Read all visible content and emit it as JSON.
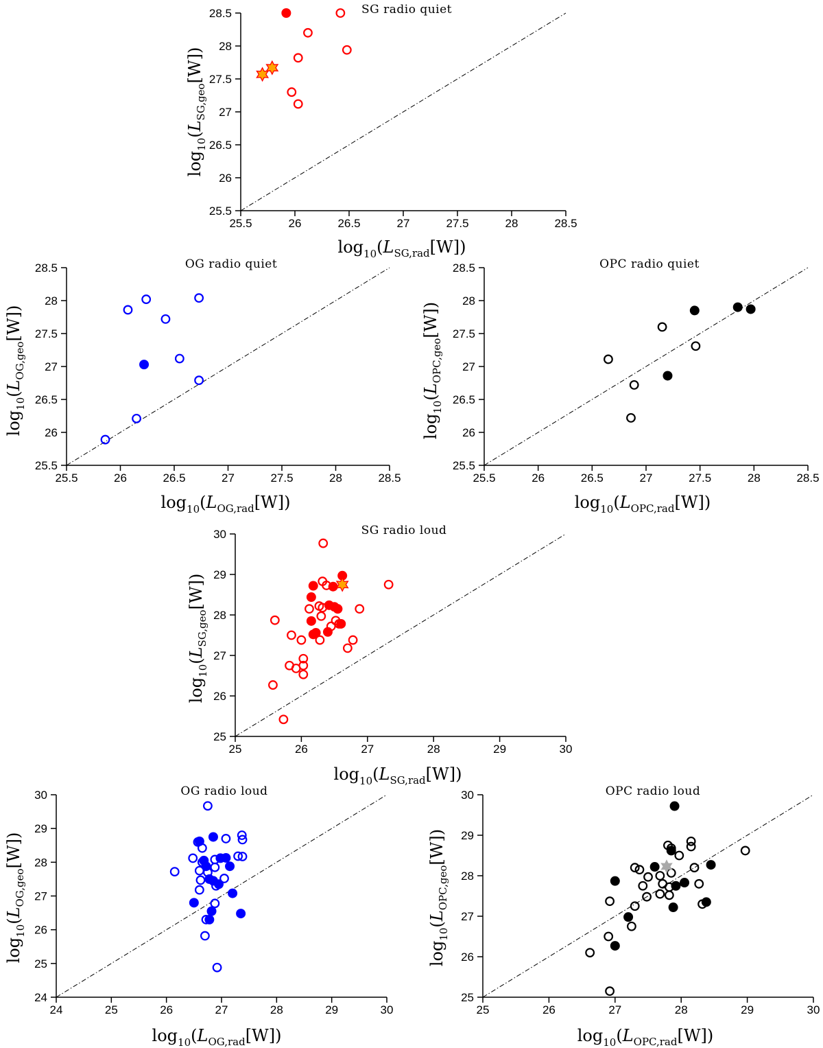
{
  "colors": {
    "sg": "#ff0000",
    "og": "#0000ff",
    "opc": "#000000",
    "star_fill": "#ffa500",
    "star_edge": "#ff0000",
    "grey_star": "#a9a9a9"
  },
  "chart_data": [
    {
      "type": "scatter",
      "title": "SG radio quiet",
      "xlabel": {
        "pre": "log",
        "base": "10",
        "open": "(",
        "var": "L",
        "sub": "SG,rad",
        "unit": "[W])"
      },
      "ylabel": {
        "pre": "log",
        "base": "10",
        "open": "(",
        "var": "L",
        "sub": "SG,geo",
        "unit": "[W])"
      },
      "xlim": [
        25.5,
        28.5
      ],
      "ylim": [
        25.5,
        28.5
      ],
      "xticks": [
        "25.5",
        "26",
        "26.5",
        "27",
        "27.5",
        "28",
        "28.5"
      ],
      "yticks": [
        "25.5",
        "26",
        "26.5",
        "27",
        "27.5",
        "28",
        "28.5"
      ],
      "color_key": "sg",
      "diagonal": true,
      "series": [
        {
          "marker": "filled",
          "points": [
            [
              25.92,
              28.5
            ]
          ]
        },
        {
          "marker": "open",
          "points": [
            [
              26.42,
              28.5
            ],
            [
              26.12,
              28.2
            ],
            [
              26.48,
              27.94
            ],
            [
              26.03,
              27.82
            ],
            [
              25.97,
              27.3
            ],
            [
              26.03,
              27.12
            ]
          ]
        },
        {
          "marker": "star",
          "points": [
            [
              25.7,
              27.57
            ],
            [
              25.79,
              27.67
            ]
          ]
        }
      ]
    },
    {
      "type": "scatter",
      "title": "OG radio quiet",
      "xlabel": {
        "pre": "log",
        "base": "10",
        "open": "(",
        "var": "L",
        "sub": "OG,rad",
        "unit": "[W])"
      },
      "ylabel": {
        "pre": "log",
        "base": "10",
        "open": "(",
        "var": "L",
        "sub": "OG,geo",
        "unit": "[W])"
      },
      "xlim": [
        25.5,
        28.5
      ],
      "ylim": [
        25.5,
        28.5
      ],
      "xticks": [
        "25.5",
        "26",
        "26.5",
        "27",
        "27.5",
        "28",
        "28.5"
      ],
      "yticks": [
        "25.5",
        "26",
        "26.5",
        "27",
        "27.5",
        "28",
        "28.5"
      ],
      "color_key": "og",
      "diagonal": true,
      "series": [
        {
          "marker": "filled",
          "points": [
            [
              26.22,
              27.03
            ]
          ]
        },
        {
          "marker": "open",
          "points": [
            [
              26.07,
              27.86
            ],
            [
              26.24,
              28.02
            ],
            [
              26.73,
              28.04
            ],
            [
              26.42,
              27.72
            ],
            [
              26.55,
              27.12
            ],
            [
              26.73,
              26.79
            ],
            [
              26.15,
              26.21
            ],
            [
              25.86,
              25.89
            ]
          ]
        }
      ]
    },
    {
      "type": "scatter",
      "title": "OPC radio quiet",
      "xlabel": {
        "pre": "log",
        "base": "10",
        "open": "(",
        "var": "L",
        "sub": "OPC,rad",
        "unit": "[W])"
      },
      "ylabel": {
        "pre": "log",
        "base": "10",
        "open": "(",
        "var": "L",
        "sub": "OPC,geo",
        "unit": "[W])"
      },
      "xlim": [
        25.5,
        28.5
      ],
      "ylim": [
        25.5,
        28.5
      ],
      "xticks": [
        "25.5",
        "26",
        "26.5",
        "27",
        "27.5",
        "28",
        "28.5"
      ],
      "yticks": [
        "25.5",
        "26",
        "26.5",
        "27",
        "27.5",
        "28",
        "28.5"
      ],
      "color_key": "opc",
      "diagonal": true,
      "series": [
        {
          "marker": "filled",
          "points": [
            [
              27.45,
              27.85
            ],
            [
              27.85,
              27.9
            ],
            [
              27.97,
              27.87
            ],
            [
              27.2,
              26.86
            ]
          ]
        },
        {
          "marker": "open",
          "points": [
            [
              27.15,
              27.6
            ],
            [
              27.46,
              27.31
            ],
            [
              26.65,
              27.11
            ],
            [
              26.89,
              26.72
            ],
            [
              26.86,
              26.22
            ]
          ]
        }
      ]
    },
    {
      "type": "scatter",
      "title": "SG radio loud",
      "xlabel": {
        "pre": "log",
        "base": "10",
        "open": "(",
        "var": "L",
        "sub": "SG,rad",
        "unit": "[W])"
      },
      "ylabel": {
        "pre": "log",
        "base": "10",
        "open": "(",
        "var": "L",
        "sub": "SG,geo",
        "unit": "[W])"
      },
      "xlim": [
        25,
        30
      ],
      "ylim": [
        25,
        30
      ],
      "xticks": [
        "25",
        "26",
        "27",
        "28",
        "29",
        "30"
      ],
      "yticks": [
        "25",
        "26",
        "27",
        "28",
        "29",
        "30"
      ],
      "color_key": "sg",
      "diagonal": true,
      "series": [
        {
          "marker": "filled",
          "points": [
            [
              26.62,
              28.97
            ],
            [
              26.18,
              28.72
            ],
            [
              26.48,
              28.7
            ],
            [
              26.15,
              28.44
            ],
            [
              26.42,
              28.24
            ],
            [
              26.5,
              28.2
            ],
            [
              26.55,
              28.15
            ],
            [
              26.15,
              27.85
            ],
            [
              26.6,
              27.78
            ],
            [
              26.22,
              27.56
            ],
            [
              26.4,
              27.58
            ],
            [
              26.18,
              27.52
            ]
          ]
        },
        {
          "marker": "open",
          "points": [
            [
              26.33,
              29.77
            ],
            [
              26.32,
              28.83
            ],
            [
              26.38,
              28.73
            ],
            [
              27.32,
              28.75
            ],
            [
              26.27,
              28.22
            ],
            [
              26.12,
              28.15
            ],
            [
              26.32,
              28.18
            ],
            [
              26.88,
              28.15
            ],
            [
              26.3,
              27.97
            ],
            [
              26.52,
              27.86
            ],
            [
              25.6,
              27.87
            ],
            [
              26.45,
              27.72
            ],
            [
              26.57,
              27.78
            ],
            [
              25.85,
              27.5
            ],
            [
              26.0,
              27.38
            ],
            [
              26.28,
              27.38
            ],
            [
              26.78,
              27.38
            ],
            [
              26.7,
              27.18
            ],
            [
              26.03,
              26.92
            ],
            [
              25.82,
              26.75
            ],
            [
              26.03,
              26.75
            ],
            [
              25.92,
              26.68
            ],
            [
              26.03,
              26.53
            ],
            [
              25.57,
              26.27
            ],
            [
              25.73,
              25.42
            ]
          ]
        },
        {
          "marker": "star",
          "points": [
            [
              26.62,
              28.75
            ]
          ]
        }
      ]
    },
    {
      "type": "scatter",
      "title": "OG radio loud",
      "xlabel": {
        "pre": "log",
        "base": "10",
        "open": "(",
        "var": "L",
        "sub": "OG,rad",
        "unit": "[W])"
      },
      "ylabel": {
        "pre": "log",
        "base": "10",
        "open": "(",
        "var": "L",
        "sub": "OG,geo",
        "unit": "[W])"
      },
      "xlim": [
        24,
        30
      ],
      "ylim": [
        24,
        30
      ],
      "xticks": [
        "24",
        "25",
        "26",
        "27",
        "28",
        "29",
        "30"
      ],
      "yticks": [
        "24",
        "25",
        "26",
        "27",
        "28",
        "29",
        "30"
      ],
      "color_key": "og",
      "diagonal": true,
      "series": [
        {
          "marker": "filled",
          "points": [
            [
              26.85,
              28.75
            ],
            [
              26.6,
              28.62
            ],
            [
              26.68,
              28.05
            ],
            [
              26.98,
              28.12
            ],
            [
              27.08,
              28.13
            ],
            [
              27.15,
              27.88
            ],
            [
              26.72,
              27.88
            ],
            [
              26.78,
              27.5
            ],
            [
              26.85,
              27.45
            ],
            [
              26.95,
              27.35
            ],
            [
              27.2,
              27.08
            ],
            [
              26.5,
              26.8
            ],
            [
              26.82,
              26.55
            ],
            [
              26.78,
              26.3
            ],
            [
              27.35,
              26.48
            ]
          ]
        },
        {
          "marker": "open",
          "points": [
            [
              26.75,
              29.67
            ],
            [
              27.37,
              28.8
            ],
            [
              27.08,
              28.7
            ],
            [
              27.38,
              28.67
            ],
            [
              26.57,
              28.6
            ],
            [
              26.65,
              28.42
            ],
            [
              26.48,
              28.12
            ],
            [
              26.88,
              28.08
            ],
            [
              27.3,
              28.18
            ],
            [
              27.38,
              28.17
            ],
            [
              26.65,
              28.0
            ],
            [
              26.6,
              27.75
            ],
            [
              26.88,
              27.85
            ],
            [
              26.75,
              27.7
            ],
            [
              26.15,
              27.72
            ],
            [
              26.62,
              27.47
            ],
            [
              27.05,
              27.52
            ],
            [
              26.9,
              27.3
            ],
            [
              26.6,
              27.18
            ],
            [
              26.88,
              26.78
            ],
            [
              26.72,
              26.3
            ],
            [
              26.7,
              25.82
            ],
            [
              26.92,
              24.88
            ]
          ]
        }
      ]
    },
    {
      "type": "scatter",
      "title": "OPC radio loud",
      "xlabel": {
        "pre": "log",
        "base": "10",
        "open": "(",
        "var": "L",
        "sub": "OPC,rad",
        "unit": "[W])"
      },
      "ylabel": {
        "pre": "log",
        "base": "10",
        "open": "(",
        "var": "L",
        "sub": "OPC,geo",
        "unit": "[W])"
      },
      "xlim": [
        25,
        30
      ],
      "ylim": [
        25,
        30
      ],
      "xticks": [
        "25",
        "26",
        "27",
        "28",
        "29",
        "30"
      ],
      "yticks": [
        "25",
        "26",
        "27",
        "28",
        "29",
        "30"
      ],
      "color_key": "opc",
      "diagonal": true,
      "series": [
        {
          "marker": "filled",
          "points": [
            [
              27.9,
              29.72
            ],
            [
              27.85,
              28.62
            ],
            [
              27.6,
              28.22
            ],
            [
              28.45,
              28.27
            ],
            [
              27.0,
              27.87
            ],
            [
              28.05,
              27.83
            ],
            [
              27.92,
              27.75
            ],
            [
              27.2,
              26.98
            ],
            [
              27.88,
              27.22
            ],
            [
              28.38,
              27.35
            ],
            [
              27.0,
              26.27
            ]
          ]
        },
        {
          "marker": "open",
          "points": [
            [
              28.15,
              28.85
            ],
            [
              27.8,
              28.75
            ],
            [
              28.15,
              28.72
            ],
            [
              27.85,
              28.68
            ],
            [
              27.97,
              28.5
            ],
            [
              28.97,
              28.62
            ],
            [
              27.3,
              28.2
            ],
            [
              27.37,
              28.15
            ],
            [
              28.2,
              28.2
            ],
            [
              27.85,
              28.07
            ],
            [
              27.68,
              28.0
            ],
            [
              27.5,
              27.97
            ],
            [
              27.42,
              27.75
            ],
            [
              27.72,
              27.8
            ],
            [
              27.82,
              27.72
            ],
            [
              28.27,
              27.8
            ],
            [
              27.48,
              27.48
            ],
            [
              27.68,
              27.55
            ],
            [
              27.82,
              27.52
            ],
            [
              26.92,
              27.37
            ],
            [
              27.3,
              27.25
            ],
            [
              28.32,
              27.3
            ],
            [
              27.25,
              26.75
            ],
            [
              26.9,
              26.5
            ],
            [
              26.62,
              26.1
            ],
            [
              26.92,
              25.15
            ]
          ]
        },
        {
          "marker": "star_grey",
          "points": [
            [
              27.78,
              28.23
            ]
          ]
        }
      ]
    }
  ]
}
